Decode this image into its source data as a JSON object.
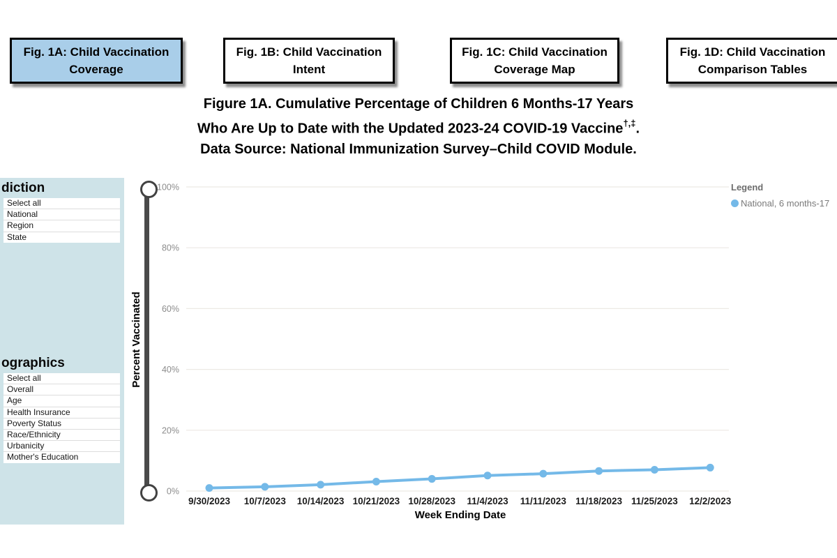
{
  "tabs": [
    {
      "label": "Fig. 1A: Child Vaccination Coverage",
      "active": true
    },
    {
      "label": "Fig. 1B: Child Vaccination Intent",
      "active": false
    },
    {
      "label": "Fig. 1C: Child Vaccination Coverage Map",
      "active": false
    },
    {
      "label": "Fig. 1D: Child Vaccination Comparison Tables",
      "active": false
    }
  ],
  "title": {
    "line1": "Figure 1A. Cumulative Percentage of Children 6 Months-17 Years",
    "line2": "Who Are Up to Date with the Updated 2023-24 COVID-19 Vaccine",
    "line2_superscript": "†,‡",
    "line2_suffix": ".",
    "line3": "Data Source: National Immunization Survey–Child COVID Module."
  },
  "sidebar": {
    "jurisdiction": {
      "heading": "diction",
      "items": [
        "Select all",
        "National",
        "Region",
        "State"
      ]
    },
    "demographics": {
      "heading": "ographics",
      "items": [
        "Select all",
        "Overall",
        "Age",
        "Health Insurance",
        "Poverty Status",
        "Race/Ethnicity",
        "Urbanicity",
        "Mother's Education"
      ]
    }
  },
  "legend": {
    "title": "Legend",
    "items": [
      {
        "label": "National, 6 months-17",
        "color": "#74B9E8"
      }
    ]
  },
  "chart_data": {
    "type": "line",
    "title": "Figure 1A. Cumulative Percentage of Children 6 Months-17 Years Who Are Up to Date with the Updated 2023-24 COVID-19 Vaccine",
    "xlabel": "Week Ending Date",
    "ylabel": "Percent Vaccinated",
    "x": [
      "9/30/2023",
      "10/7/2023",
      "10/14/2023",
      "10/21/2023",
      "10/28/2023",
      "11/4/2023",
      "11/11/2023",
      "11/18/2023",
      "11/25/2023",
      "12/2/2023"
    ],
    "series": [
      {
        "name": "National, 6 months-17",
        "color": "#74B9E8",
        "values": [
          1.0,
          1.4,
          2.1,
          3.1,
          4.0,
          5.1,
          5.7,
          6.6,
          7.0,
          7.7
        ]
      }
    ],
    "ylim": [
      0,
      100
    ],
    "yticks": [
      0,
      20,
      40,
      60,
      80,
      100
    ],
    "ytick_suffix": "%",
    "grid": true,
    "legend_position": "top-right"
  },
  "colors": {
    "active_tab_fill": "#A9CEE9",
    "sidebar_fill": "#CEE3E8",
    "line_series": "#74B9E8",
    "gridline": "#ECE9E4",
    "ytick_text": "#8c8c8c",
    "xtick_text": "#1c1c1c",
    "slider": "#424242"
  }
}
